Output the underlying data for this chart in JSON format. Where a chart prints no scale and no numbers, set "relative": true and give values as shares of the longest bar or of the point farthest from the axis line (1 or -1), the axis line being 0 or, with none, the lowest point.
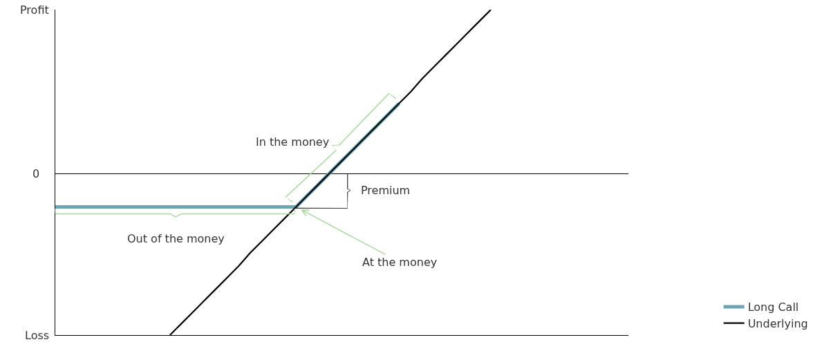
{
  "chart_data": {
    "type": "line",
    "relative": true,
    "legend": "bottom right",
    "grid": false,
    "marker": "none",
    "line_style": "solid",
    "categories": [
      null,
      null,
      null,
      null,
      null,
      null,
      null,
      null,
      null,
      null,
      null,
      null,
      null,
      null,
      null,
      null,
      null,
      null,
      null,
      null,
      null,
      null,
      null,
      null,
      null,
      null,
      null,
      null,
      null,
      null,
      null,
      null,
      null,
      null,
      null,
      null,
      null,
      null,
      null,
      null,
      null,
      null,
      null,
      null,
      null,
      null,
      null,
      null,
      null,
      null,
      null
    ],
    "series": [
      {
        "name": "Long Call",
        "color": "#6fa4b4",
        "values": [
          -0.2,
          -0.2,
          -0.2,
          -0.2,
          -0.2,
          -0.2,
          -0.2,
          -0.2,
          -0.2,
          -0.2,
          -0.2,
          -0.2,
          -0.2,
          -0.2,
          -0.2,
          -0.2,
          -0.2,
          -0.2,
          -0.2,
          -0.2,
          -0.2,
          -0.2,
          -0.13,
          -0.06,
          0.01,
          0.08,
          0.15,
          0.22,
          0.29,
          0.36,
          0.43,
          null,
          null,
          null,
          null,
          null,
          null,
          null,
          null,
          null,
          null,
          null,
          null,
          null,
          null,
          null,
          null,
          null,
          null,
          null,
          null
        ]
      },
      {
        "name": "Underlying",
        "color": "#000000",
        "values": [
          null,
          null,
          null,
          null,
          null,
          null,
          null,
          null,
          null,
          null,
          -0.98,
          -0.91,
          -0.84,
          -0.77,
          -0.7,
          -0.63,
          -0.56,
          -0.48,
          -0.41,
          -0.34,
          -0.27,
          -0.2,
          -0.13,
          -0.06,
          0.01,
          0.08,
          0.15,
          0.22,
          0.29,
          0.36,
          0.43,
          0.5,
          0.58,
          0.65,
          0.72,
          0.79,
          0.86,
          0.93,
          1.0,
          null,
          null,
          null,
          null,
          null,
          null,
          null,
          null,
          null,
          null,
          null,
          null
        ]
      }
    ],
    "annotations": [
      "Profit",
      "0",
      "Loss",
      "In the money",
      "Out of the money",
      "Premium",
      "At the money"
    ]
  }
}
